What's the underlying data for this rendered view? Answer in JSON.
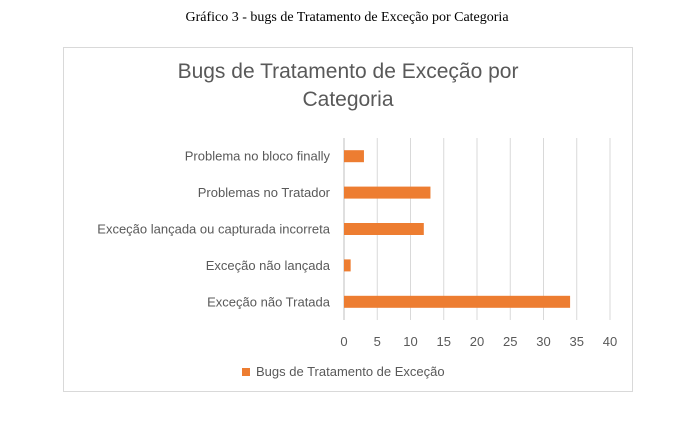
{
  "caption": "Gráfico 3 - bugs de Tratamento de Exceção por Categoria",
  "chart_data": {
    "type": "bar",
    "orientation": "horizontal",
    "title": "Bugs de Tratamento de Exceção por\nCategoria",
    "categories": [
      "Problema no bloco finally",
      "Problemas no Tratador",
      "Exceção lançada ou capturada incorreta",
      "Exceção não lançada",
      "Exceção não Tratada"
    ],
    "series": [
      {
        "name": "Bugs de Tratamento de Exceção",
        "values": [
          3,
          13,
          12,
          1,
          34
        ],
        "color": "#ed7d31"
      }
    ],
    "xlim": [
      0,
      40
    ],
    "xticks": [
      0,
      5,
      10,
      15,
      20,
      25,
      30,
      35,
      40
    ],
    "grid": true,
    "legend": "bottom",
    "gridColor": "#d9d9d9",
    "textColor": "#595959"
  }
}
